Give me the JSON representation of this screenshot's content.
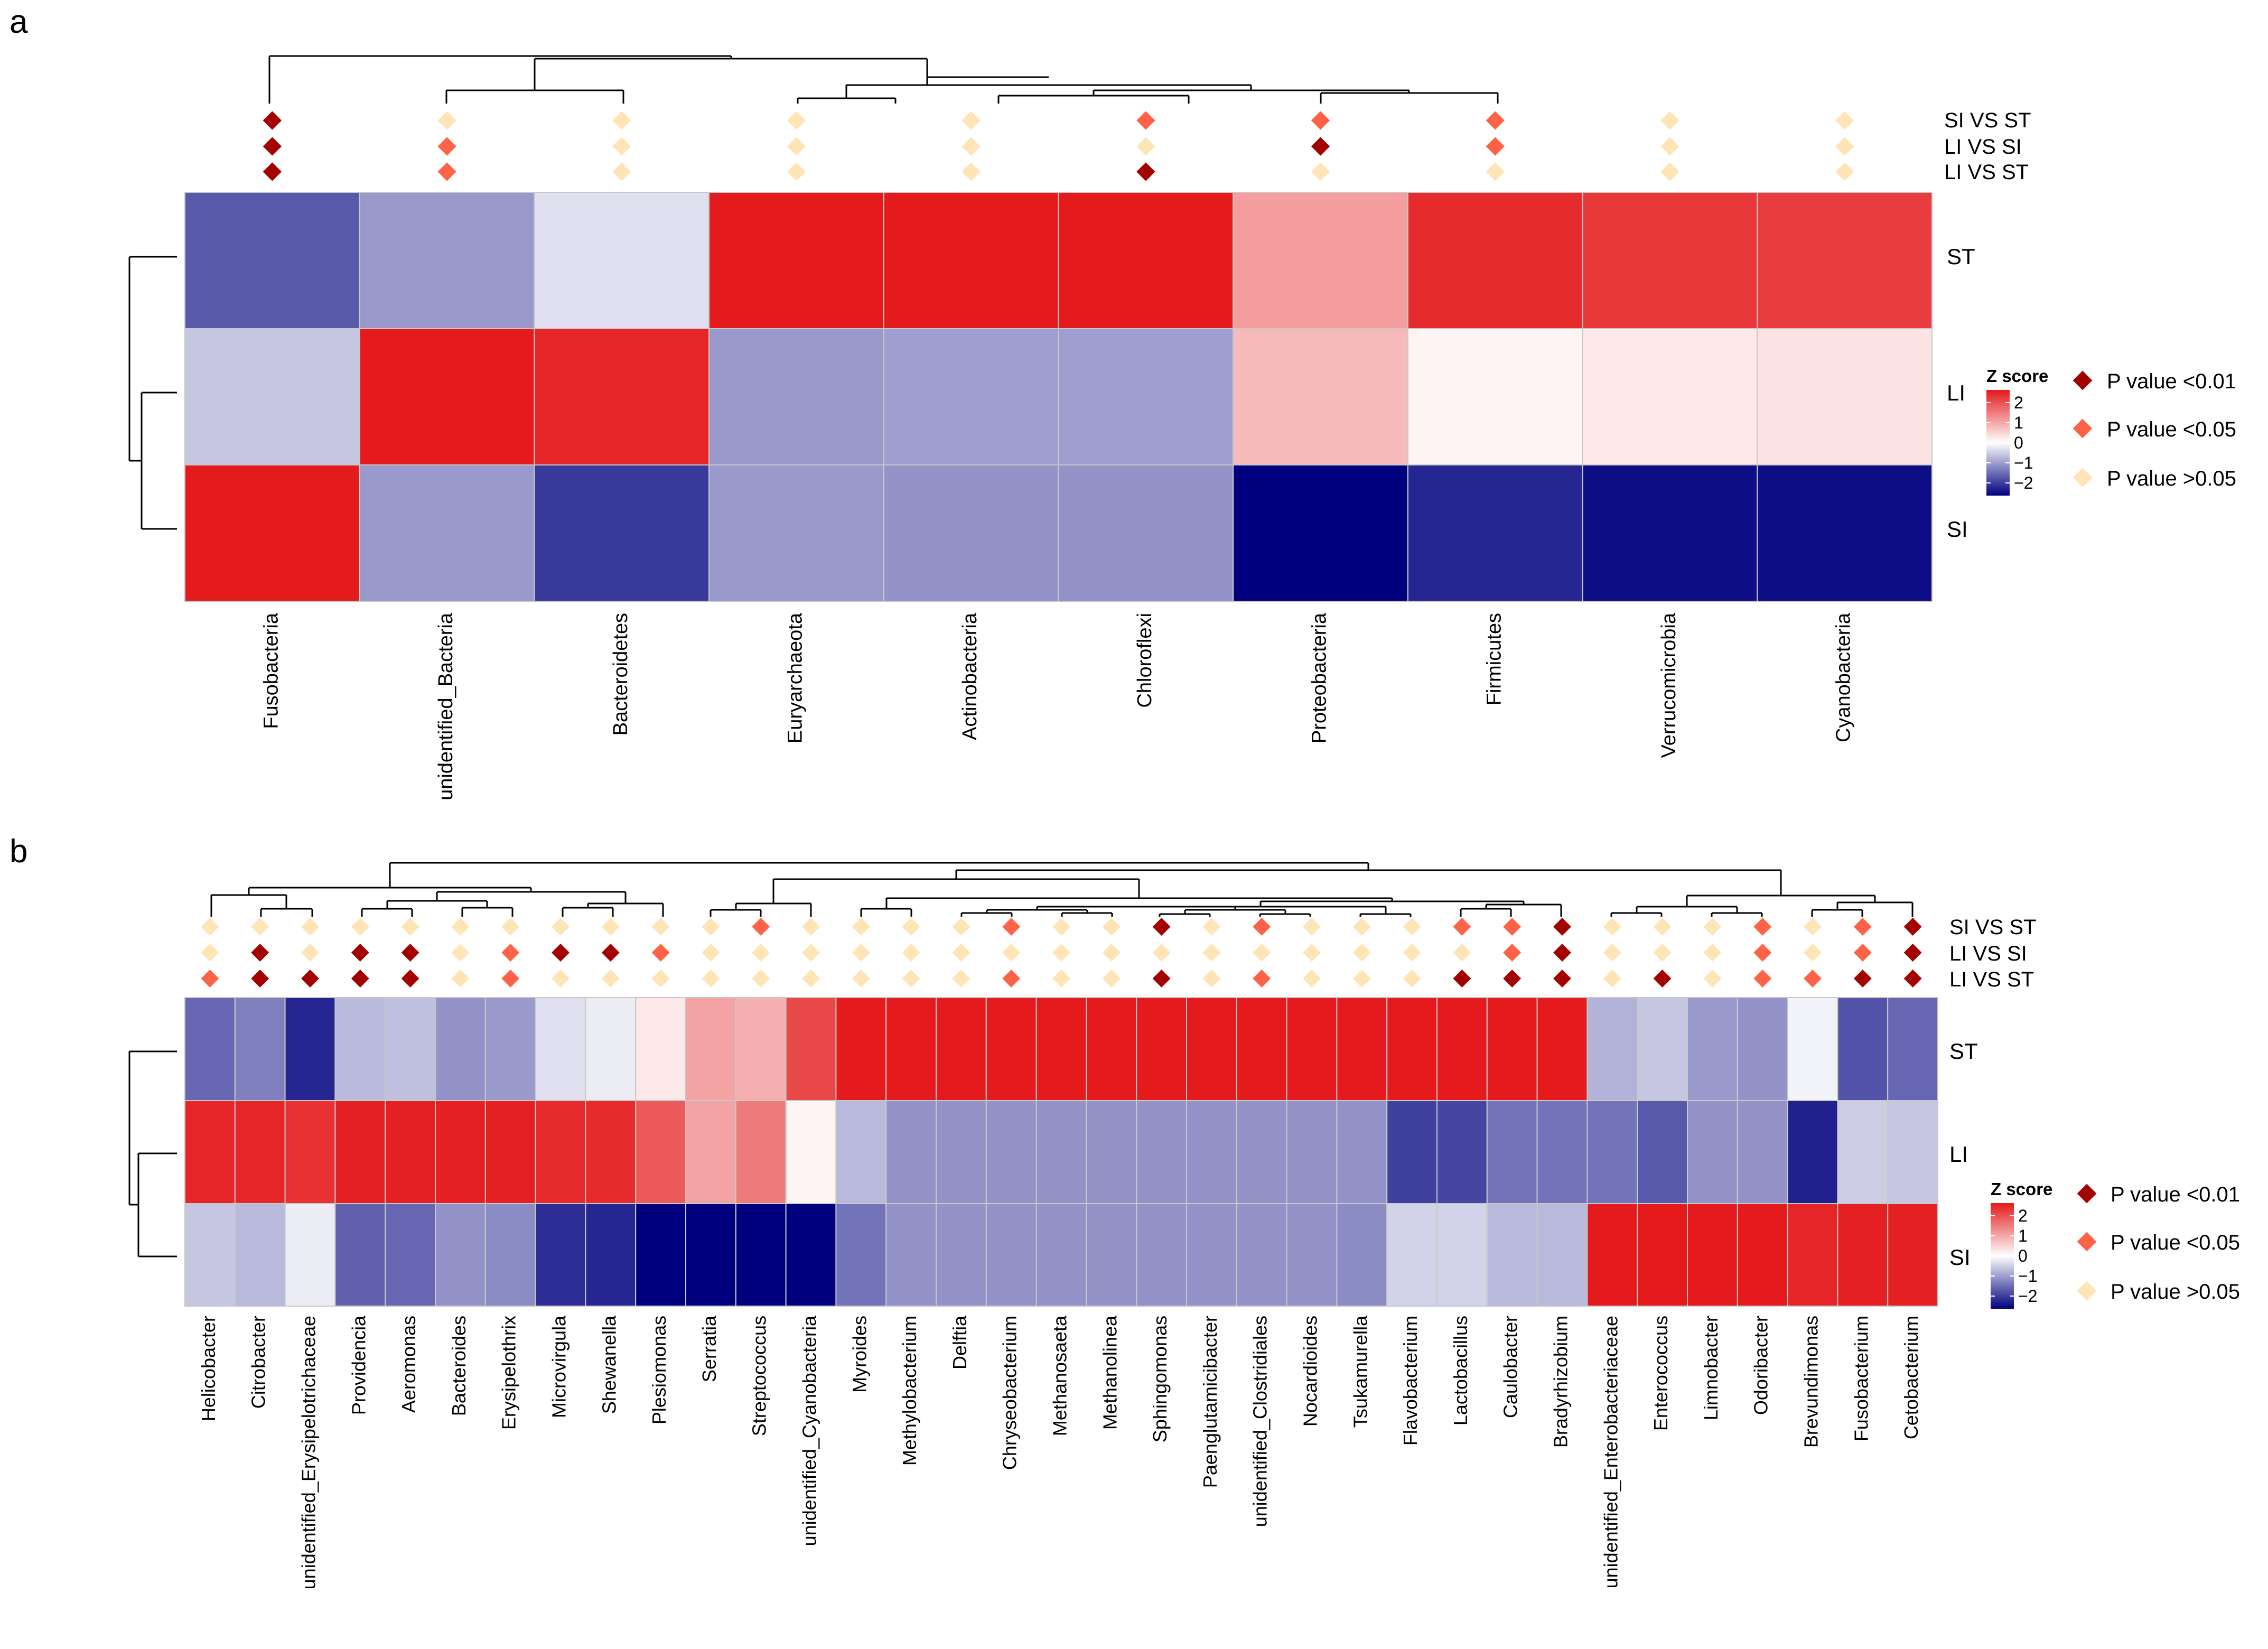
{
  "colors": {
    "high": "#e41a1c",
    "mid": "#ffffff",
    "low": "#00007f",
    "p_lt_001": "#a30000",
    "p_lt_005": "#ff6347",
    "p_gt_005": "#ffe4b5",
    "grid": "#c8c8c8"
  },
  "chart_data": [
    {
      "type": "heatmap",
      "panel_label": "a",
      "columns": [
        "Fusobacteria",
        "unidentified_Bacteria",
        "Bacteroidetes",
        "Euryarchaeota",
        "Actinobacteria",
        "Chloroflexi",
        "Proteobacteria",
        "Firmicutes",
        "Verrucomicrobia",
        "Cyanobacteria"
      ],
      "rows": [
        "ST",
        "LI",
        "SI"
      ],
      "values": [
        [
          -1.3,
          -0.8,
          -0.25,
          2.05,
          2.05,
          2.05,
          0.85,
          1.85,
          1.75,
          1.7
        ],
        [
          -0.45,
          2.0,
          1.9,
          -0.8,
          -0.75,
          -0.75,
          0.6,
          0.1,
          0.2,
          0.25
        ],
        [
          2.0,
          -0.8,
          -1.55,
          -0.8,
          -0.85,
          -0.85,
          -2.2,
          -1.7,
          -1.9,
          -1.9
        ]
      ],
      "significance_rows": [
        "SI VS ST",
        "LI VS SI",
        "LI VS ST"
      ],
      "significance": [
        [
          "<0.01",
          ">0.05",
          ">0.05",
          ">0.05",
          ">0.05",
          "<0.05",
          "<0.05",
          "<0.05",
          ">0.05",
          ">0.05"
        ],
        [
          "<0.01",
          "<0.05",
          ">0.05",
          ">0.05",
          ">0.05",
          ">0.05",
          "<0.01",
          "<0.05",
          ">0.05",
          ">0.05"
        ],
        [
          "<0.01",
          "<0.05",
          ">0.05",
          ">0.05",
          ">0.05",
          "<0.01",
          ">0.05",
          ">0.05",
          ">0.05",
          ">0.05"
        ]
      ],
      "legend": {
        "title": "Z score",
        "ticks": [
          "2",
          "1",
          "0",
          "−1",
          "−2"
        ],
        "tick_values": [
          2,
          1,
          0,
          -1,
          -2
        ],
        "entries": [
          "P value <0.01",
          "P value <0.05",
          "P value >0.05"
        ]
      }
    },
    {
      "type": "heatmap",
      "panel_label": "b",
      "columns": [
        "Helicobacter",
        "Citrobacter",
        "unidentified_Erysipelotrichaceae",
        "Providencia",
        "Aeromonas",
        "Bacteroides",
        "Erysipelothrix",
        "Microvirgula",
        "Shewanella",
        "Plesiomonas",
        "Serratia",
        "Streptococcus",
        "unidentified_Cyanobacteria",
        "Myroides",
        "Methylobacterium",
        "Delftia",
        "Chryseobacterium",
        "Methanosaeta",
        "Methanolinea",
        "Sphingomonas",
        "Paenglutamicibacter",
        "unidentified_Clostridiales",
        "Nocardioides",
        "Tsukamurella",
        "Flavobacterium",
        "Lactobacillus",
        "Caulobacter",
        "Bradyrhizobium",
        "unidentified_Enterobacteriaceae",
        "Enterococcus",
        "Limnobacter",
        "Odoribacter",
        "Brevundimonas",
        "Fusobacterium",
        "Cetobacterium"
      ],
      "rows": [
        "ST",
        "LI",
        "SI"
      ],
      "values": [
        [
          -1.2,
          -1.0,
          -1.7,
          -0.55,
          -0.5,
          -0.85,
          -0.8,
          -0.25,
          -0.15,
          0.2,
          0.8,
          0.7,
          1.6,
          2.0,
          2.0,
          2.0,
          2.0,
          2.0,
          2.0,
          2.0,
          2.0,
          2.0,
          2.0,
          2.0,
          2.0,
          2.0,
          2.0,
          2.0,
          -0.6,
          -0.45,
          -0.8,
          -0.85,
          -0.1,
          -1.35,
          -1.2
        ],
        [
          1.9,
          1.9,
          1.8,
          1.95,
          1.95,
          1.95,
          1.95,
          1.85,
          1.85,
          1.45,
          0.8,
          1.15,
          0.1,
          -0.55,
          -0.85,
          -0.85,
          -0.85,
          -0.85,
          -0.85,
          -0.85,
          -0.85,
          -0.85,
          -0.85,
          -0.85,
          -1.5,
          -1.45,
          -1.1,
          -1.1,
          -1.1,
          -1.3,
          -0.85,
          -0.85,
          -1.75,
          -0.4,
          -0.45
        ],
        [
          -0.45,
          -0.55,
          -0.15,
          -1.25,
          -1.2,
          -0.85,
          -0.9,
          -1.65,
          -1.7,
          -2.1,
          -2.3,
          -2.2,
          -2.0,
          -1.1,
          -0.85,
          -0.85,
          -0.85,
          -0.85,
          -0.85,
          -0.85,
          -0.85,
          -0.85,
          -0.85,
          -0.9,
          -0.35,
          -0.35,
          -0.55,
          -0.55,
          2.0,
          2.0,
          2.0,
          2.0,
          1.9,
          1.95,
          1.95
        ]
      ],
      "significance_rows": [
        "SI VS ST",
        "LI VS SI",
        "LI VS ST"
      ],
      "significance": [
        [
          ">0.05",
          ">0.05",
          ">0.05",
          ">0.05",
          ">0.05",
          ">0.05",
          ">0.05",
          ">0.05",
          ">0.05",
          ">0.05",
          ">0.05",
          "<0.05",
          ">0.05",
          ">0.05",
          ">0.05",
          ">0.05",
          "<0.05",
          ">0.05",
          ">0.05",
          "<0.01",
          ">0.05",
          "<0.05",
          ">0.05",
          ">0.05",
          ">0.05",
          "<0.05",
          "<0.05",
          "<0.01",
          ">0.05",
          ">0.05",
          ">0.05",
          "<0.05",
          ">0.05",
          "<0.05",
          "<0.01"
        ],
        [
          ">0.05",
          "<0.01",
          ">0.05",
          "<0.01",
          "<0.01",
          ">0.05",
          "<0.05",
          "<0.01",
          "<0.01",
          "<0.05",
          ">0.05",
          ">0.05",
          ">0.05",
          ">0.05",
          ">0.05",
          ">0.05",
          ">0.05",
          ">0.05",
          ">0.05",
          ">0.05",
          ">0.05",
          ">0.05",
          ">0.05",
          ">0.05",
          ">0.05",
          ">0.05",
          "<0.05",
          "<0.01",
          ">0.05",
          ">0.05",
          ">0.05",
          "<0.05",
          ">0.05",
          "<0.05",
          "<0.01"
        ],
        [
          "<0.05",
          "<0.01",
          "<0.01",
          "<0.01",
          "<0.01",
          ">0.05",
          "<0.05",
          ">0.05",
          ">0.05",
          ">0.05",
          ">0.05",
          ">0.05",
          ">0.05",
          ">0.05",
          ">0.05",
          ">0.05",
          "<0.05",
          ">0.05",
          ">0.05",
          "<0.01",
          ">0.05",
          "<0.05",
          ">0.05",
          ">0.05",
          ">0.05",
          "<0.01",
          "<0.01",
          "<0.01",
          ">0.05",
          "<0.01",
          ">0.05",
          "<0.05",
          "<0.05",
          "<0.01",
          "<0.01"
        ]
      ],
      "legend": {
        "title": "Z score",
        "ticks": [
          "2",
          "1",
          "0",
          "−1",
          "−2"
        ],
        "tick_values": [
          2,
          1,
          0,
          -1,
          -2
        ],
        "entries": [
          "P value <0.01",
          "P value <0.05",
          "P value >0.05"
        ]
      }
    }
  ]
}
